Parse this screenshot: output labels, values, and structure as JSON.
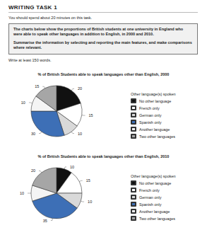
{
  "header": {
    "title": "WRITING TASK 1",
    "instruction": "You should spend about 20 minutes on this task.",
    "task": [
      "The charts below show the proportions of British students at one university in England who were able to speak other languages in addition to English, in 2000 and 2010.",
      "Summarise the information by selecting and reporting the main features, and make comparisons where relevant."
    ],
    "word_count": "Write at least 150 words."
  },
  "chart_data": [
    {
      "type": "pie",
      "title": "% of British Students able to speak languages other than English, 2000",
      "legend_title": "Other language(s) spoken",
      "categories": [
        "No other language",
        "French only",
        "German only",
        "Spanish only",
        "Another language",
        "Two other languages"
      ],
      "values": [
        20,
        15,
        10,
        30,
        10,
        15
      ],
      "colors": [
        "#111111",
        "#ffffff",
        "#d9d9d9",
        "#3d6fb6",
        "#f4f4f4",
        "#a6a6a6"
      ],
      "data_labels": true,
      "legend": "right"
    },
    {
      "type": "pie",
      "title": "% of British Students able to speak languages other than English, 2010",
      "legend_title": "Other language(s) spoken",
      "categories": [
        "No other language",
        "French only",
        "German only",
        "Spanish only",
        "Another language",
        "Two other languages"
      ],
      "values": [
        10,
        15,
        10,
        35,
        10,
        20
      ],
      "colors": [
        "#111111",
        "#ffffff",
        "#d9d9d9",
        "#3d6fb6",
        "#f4f4f4",
        "#a6a6a6"
      ],
      "data_labels": true,
      "legend": "right"
    }
  ]
}
